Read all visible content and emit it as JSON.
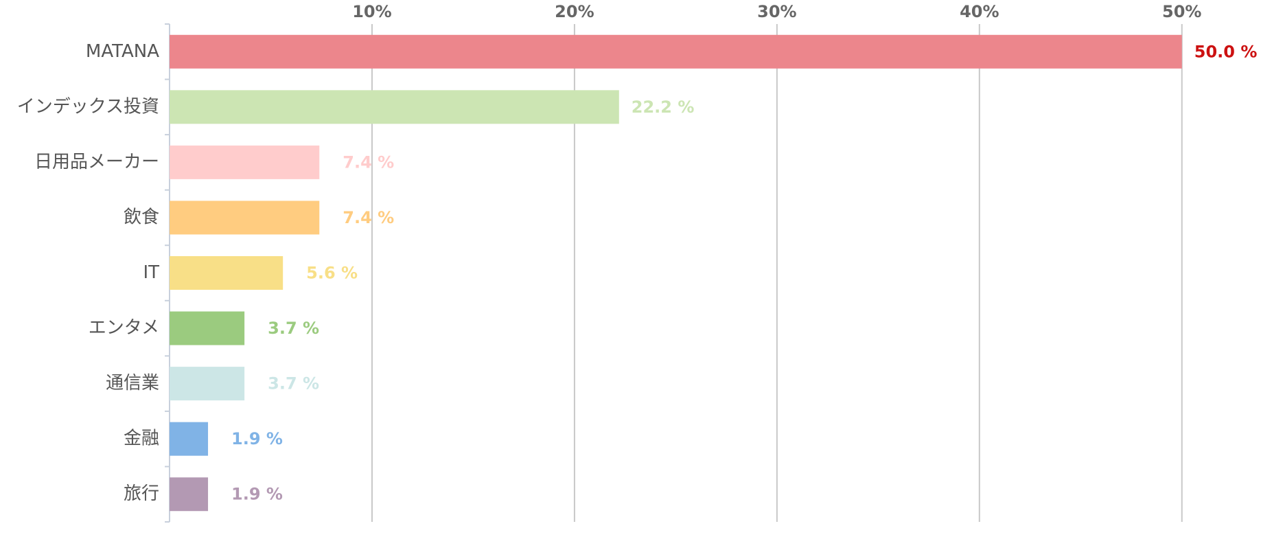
{
  "chart_data": {
    "type": "bar",
    "orientation": "horizontal",
    "categories": [
      "MATANA",
      "インデックス投資",
      "日用品メーカー",
      "飲食",
      "IT",
      "エンタメ",
      "通信業",
      "金融",
      "旅行"
    ],
    "values": [
      50.0,
      22.2,
      7.4,
      7.4,
      5.6,
      3.7,
      3.7,
      1.9,
      1.9
    ],
    "value_labels": [
      "50.0 %",
      "22.2 %",
      "7.4 %",
      "7.4 %",
      "5.6 %",
      "3.7 %",
      "3.7 %",
      "1.9 %",
      "1.9 %"
    ],
    "colors": [
      "#ec868c",
      "#cce5b3",
      "#ffcccc",
      "#ffcc80",
      "#f8df87",
      "#9bcb7f",
      "#cce6e6",
      "#80b3e6",
      "#b399b3"
    ],
    "value_label_colors": [
      "#cc1111",
      "#cce5b3",
      "#ffcccc",
      "#ffcc80",
      "#f8df87",
      "#9bcb7f",
      "#cce6e6",
      "#80b3e6",
      "#b399b3"
    ],
    "xlim": [
      0,
      53.5
    ],
    "xticks": [
      {
        "value": 10,
        "label": "10%"
      },
      {
        "value": 20,
        "label": "20%"
      },
      {
        "value": 30,
        "label": "30%"
      },
      {
        "value": 40,
        "label": "40%"
      },
      {
        "value": 50,
        "label": "50%"
      }
    ],
    "grid": true
  }
}
